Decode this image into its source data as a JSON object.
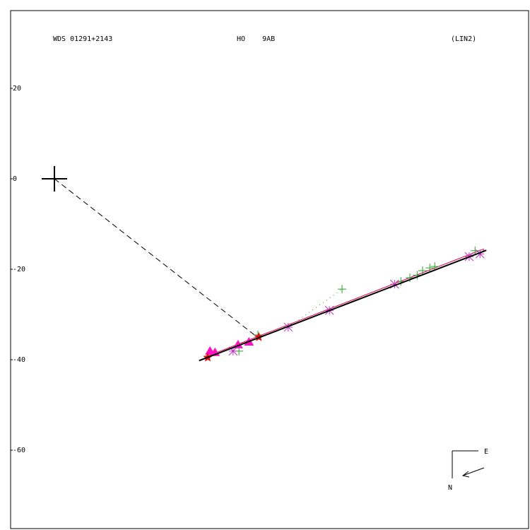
{
  "chart_data": {
    "type": "scatter",
    "title": "WDS 01291+2143",
    "subtitle": "HO    9AB",
    "annotation": "(LIN2)",
    "compass": {
      "east": "E",
      "north": "N"
    },
    "xlim": [
      -9.69,
      104.84
    ],
    "ylim": [
      -77.34,
      37.19
    ],
    "yticks": [
      20,
      0,
      -20,
      -40,
      -60
    ],
    "series": [
      {
        "marker": "line",
        "dash": "dashed",
        "color": "#000000",
        "x": [
          0,
          44.2
        ],
        "values": [
          0,
          -34.5
        ]
      },
      {
        "marker": "line",
        "dash": "solid",
        "color": "#e00050",
        "x": [
          33.3,
          95.0
        ],
        "values": [
          -39.4,
          -15.5
        ]
      },
      {
        "marker": "line",
        "dash": "dotted",
        "color": "#2a9a2a",
        "x": [
          51.7,
          63.6
        ],
        "values": [
          -32.8,
          -24.4
        ]
      },
      {
        "marker": "plus",
        "color": "#2aa02a",
        "x": [
          40.8,
          45.0,
          63.6,
          76.6,
          78.6,
          80.2,
          81.4,
          83.0,
          84.1,
          93.0
        ],
        "values": [
          -38.1,
          -34.5,
          -24.4,
          -22.7,
          -21.9,
          -21.3,
          -20.3,
          -19.7,
          -19.4,
          -15.9
        ]
      },
      {
        "marker": "asterisk",
        "color": "#c030c0",
        "x": [
          39.5,
          51.7,
          60.8,
          75.2,
          91.7,
          94.1
        ],
        "values": [
          -38.1,
          -32.8,
          -29.1,
          -23.3,
          -17.2,
          -16.6
        ]
      },
      {
        "marker": "triangle",
        "color": "#ff10c0",
        "x": [
          34.4,
          35.5,
          40.6,
          43.0
        ],
        "values": [
          -38.1,
          -38.4,
          -36.7,
          -36.1
        ]
      },
      {
        "marker": "star",
        "color": "#e01010",
        "x": [
          33.9,
          45.2
        ],
        "values": [
          -39.5,
          -35.0
        ]
      },
      {
        "marker": "line",
        "dash": "solid",
        "width": 2,
        "color": "#000000",
        "x": [
          32.0,
          95.5
        ],
        "values": [
          -40.2,
          -15.8
        ]
      },
      {
        "marker": "bigplus",
        "color": "#000000",
        "x": [
          0
        ],
        "values": [
          0
        ]
      }
    ]
  }
}
